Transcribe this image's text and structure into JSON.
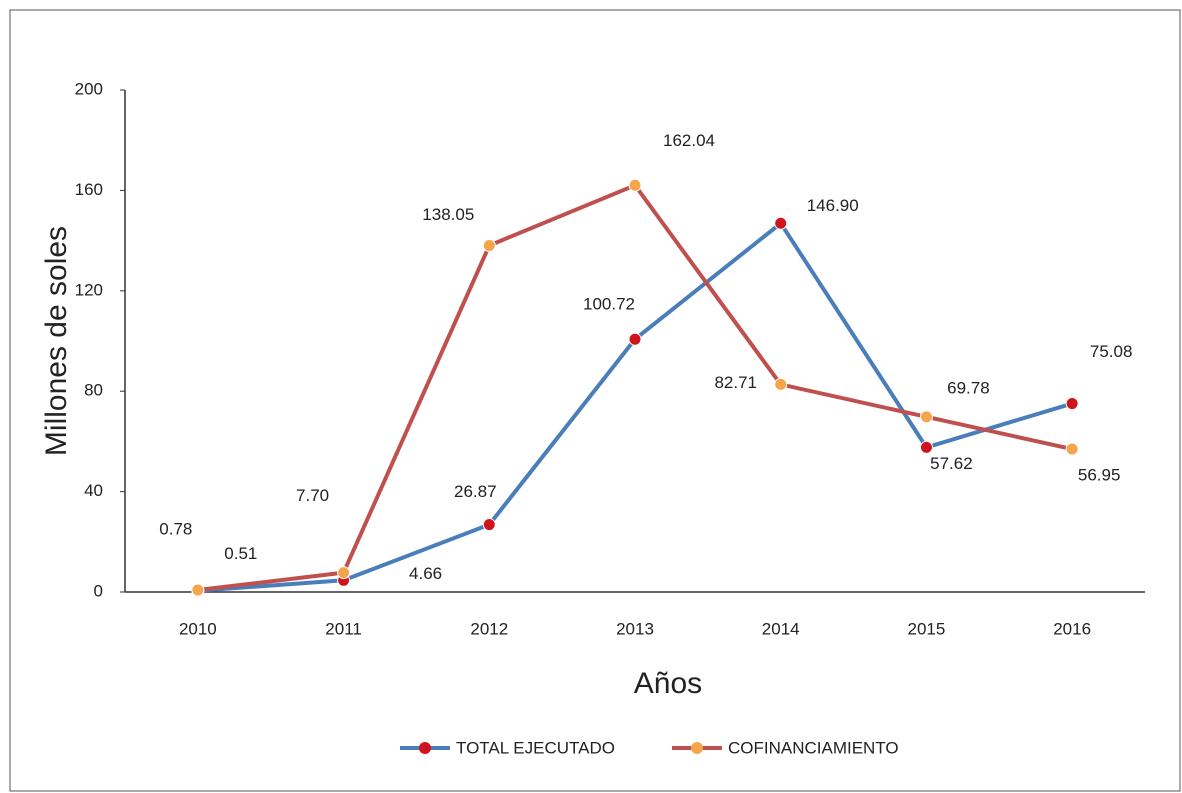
{
  "chart_data": {
    "type": "line",
    "x_label": "Años",
    "y_label": "Millones de soles",
    "categories": [
      "2010",
      "2011",
      "2012",
      "2013",
      "2014",
      "2015",
      "2016"
    ],
    "series": [
      {
        "name": "TOTAL EJECUTADO",
        "color": "#4a7ebb",
        "marker_color": "#d0141c",
        "values": [
          0.51,
          4.66,
          26.87,
          100.72,
          146.9,
          57.62,
          75.08
        ],
        "value_labels": [
          "0.51",
          "4.66",
          "26.87",
          "100.72",
          "146.90",
          "57.62",
          "75.08"
        ]
      },
      {
        "name": "COFINANCIAMIENTO",
        "color": "#c0504d",
        "marker_color": "#f5a64a",
        "values": [
          0.78,
          7.7,
          138.05,
          162.04,
          82.71,
          69.78,
          56.95
        ],
        "value_labels": [
          "0.78",
          "7.70",
          "138.05",
          "162.04",
          "82.71",
          "69.78",
          "56.95"
        ]
      }
    ],
    "ylim": [
      0,
      200
    ],
    "yticks": [
      0,
      40,
      80,
      120,
      160,
      200
    ],
    "grid": false,
    "legend": "bottom"
  }
}
